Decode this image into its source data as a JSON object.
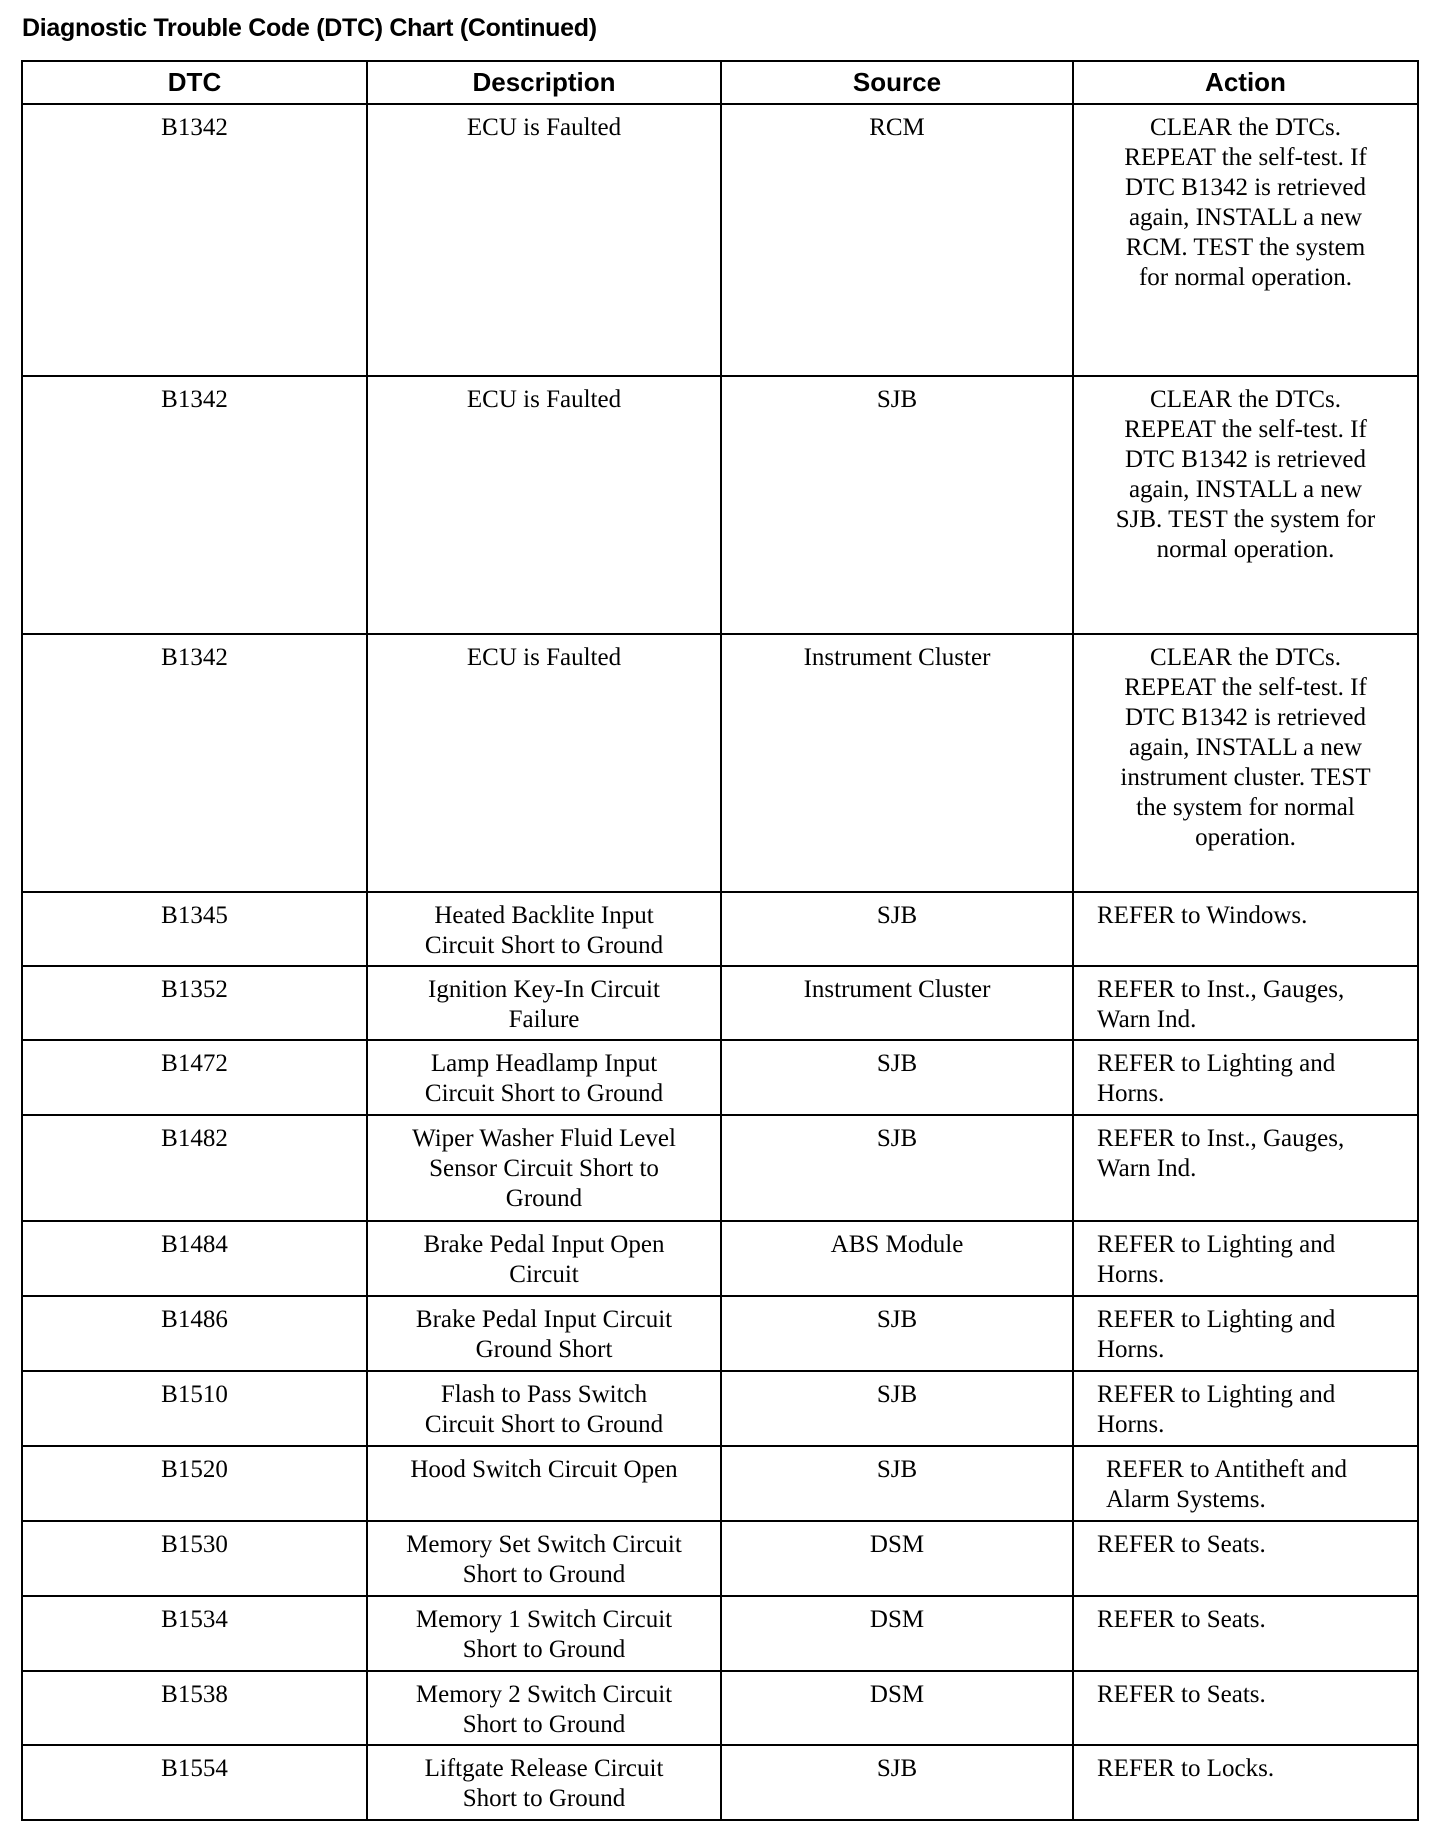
{
  "title": "Diagnostic Trouble Code (DTC) Chart (Continued)",
  "columns": [
    "DTC",
    "Description",
    "Source",
    "Action"
  ],
  "rows": [
    {
      "dtc": "B1342",
      "description": [
        "ECU is Faulted"
      ],
      "source": "RCM",
      "action": [
        "CLEAR the DTCs.",
        "REPEAT the self-test. If",
        "DTC B1342 is retrieved",
        "again, INSTALL a new",
        "RCM. TEST the system",
        "for normal operation."
      ],
      "action_align": "center"
    },
    {
      "dtc": "B1342",
      "description": [
        "ECU is Faulted"
      ],
      "source": "SJB",
      "action": [
        "CLEAR the DTCs.",
        "REPEAT the self-test. If",
        "DTC B1342 is retrieved",
        "again, INSTALL a new",
        "SJB. TEST the system for",
        "normal operation."
      ],
      "action_align": "center"
    },
    {
      "dtc": "B1342",
      "description": [
        "ECU is Faulted"
      ],
      "source": "Instrument Cluster",
      "action": [
        "CLEAR the DTCs.",
        "REPEAT the self-test. If",
        "DTC B1342 is retrieved",
        "again, INSTALL a new",
        "instrument cluster. TEST",
        "the system for normal",
        "operation."
      ],
      "action_align": "center"
    },
    {
      "dtc": "B1345",
      "description": [
        "Heated Backlite Input",
        "Circuit Short to Ground"
      ],
      "source": "SJB",
      "action": [
        "REFER to Windows."
      ],
      "action_align": "left"
    },
    {
      "dtc": "B1352",
      "description": [
        "Ignition Key-In Circuit",
        "Failure"
      ],
      "source": "Instrument Cluster",
      "action": [
        "REFER to Inst., Gauges,",
        "Warn Ind."
      ],
      "action_align": "left"
    },
    {
      "dtc": "B1472",
      "description": [
        "Lamp Headlamp Input",
        "Circuit Short to Ground"
      ],
      "source": "SJB",
      "action": [
        "REFER to Lighting and",
        "Horns."
      ],
      "action_align": "left"
    },
    {
      "dtc": "B1482",
      "description": [
        "Wiper Washer Fluid Level",
        "Sensor Circuit Short to",
        "Ground"
      ],
      "source": "SJB",
      "action": [
        "REFER to Inst., Gauges,",
        "Warn Ind."
      ],
      "action_align": "left"
    },
    {
      "dtc": "B1484",
      "description": [
        "Brake Pedal Input Open",
        "Circuit"
      ],
      "source": "ABS Module",
      "action": [
        "REFER to Lighting and",
        "Horns."
      ],
      "action_align": "left"
    },
    {
      "dtc": "B1486",
      "description": [
        "Brake Pedal Input Circuit",
        "Ground Short"
      ],
      "source": "SJB",
      "action": [
        "REFER to Lighting and",
        "Horns."
      ],
      "action_align": "left"
    },
    {
      "dtc": "B1510",
      "description": [
        "Flash to Pass Switch",
        "Circuit Short to Ground"
      ],
      "source": "SJB",
      "action": [
        "REFER to Lighting and",
        "Horns."
      ],
      "action_align": "left"
    },
    {
      "dtc": "B1520",
      "description": [
        "Hood Switch Circuit Open"
      ],
      "source": "SJB",
      "action": [
        "REFER to Antitheft and",
        "Alarm Systems."
      ],
      "action_align": "left-indent"
    },
    {
      "dtc": "B1530",
      "description": [
        "Memory Set Switch Circuit",
        "Short to Ground"
      ],
      "source": "DSM",
      "action": [
        "REFER to Seats."
      ],
      "action_align": "left"
    },
    {
      "dtc": "B1534",
      "description": [
        "Memory 1 Switch Circuit",
        "Short to Ground"
      ],
      "source": "DSM",
      "action": [
        "REFER to Seats."
      ],
      "action_align": "left"
    },
    {
      "dtc": "B1538",
      "description": [
        "Memory 2 Switch Circuit",
        "Short to Ground"
      ],
      "source": "DSM",
      "action": [
        "REFER to Seats."
      ],
      "action_align": "left"
    },
    {
      "dtc": "B1554",
      "description": [
        "Liftgate Release Circuit",
        "Short to Ground"
      ],
      "source": "SJB",
      "action": [
        "REFER to Locks."
      ],
      "action_align": "left"
    }
  ]
}
